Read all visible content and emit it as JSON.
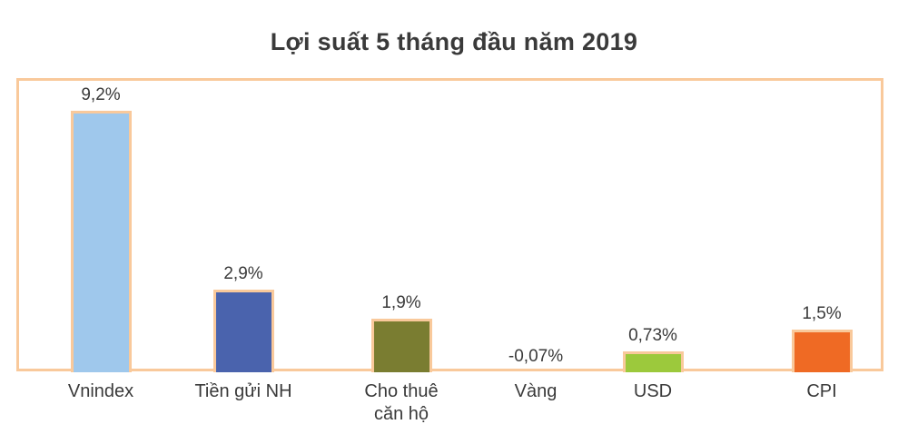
{
  "chart_data": {
    "type": "bar",
    "title": "Lợi suất 5 tháng đầu năm 2019",
    "xlabel": "",
    "ylabel": "",
    "categories": [
      "Vnindex",
      "Tiền gửi NH",
      "Cho thuê căn hộ",
      "Vàng",
      "USD",
      "CPI"
    ],
    "category_lines": [
      [
        "Vnindex"
      ],
      [
        "Tiền gửi NH"
      ],
      [
        "Cho thuê",
        "căn hộ"
      ],
      [
        "Vàng"
      ],
      [
        "USD"
      ],
      [
        "CPI"
      ]
    ],
    "values": [
      9.2,
      2.9,
      1.9,
      -0.07,
      0.73,
      1.5
    ],
    "value_labels": [
      "9,2%",
      "2,9%",
      "1,9%",
      "-0,07%",
      "0,73%",
      "1,5%"
    ],
    "colors": [
      "#9fc8ec",
      "#4a63ad",
      "#7a7d31",
      "#9fc8ec",
      "#9cc93c",
      "#ef6a24"
    ],
    "bar_border_color": "#f9c99b",
    "frame_color": "#f9c99b",
    "grid": false,
    "legend": null,
    "ylim": [
      -0.1,
      10
    ]
  }
}
